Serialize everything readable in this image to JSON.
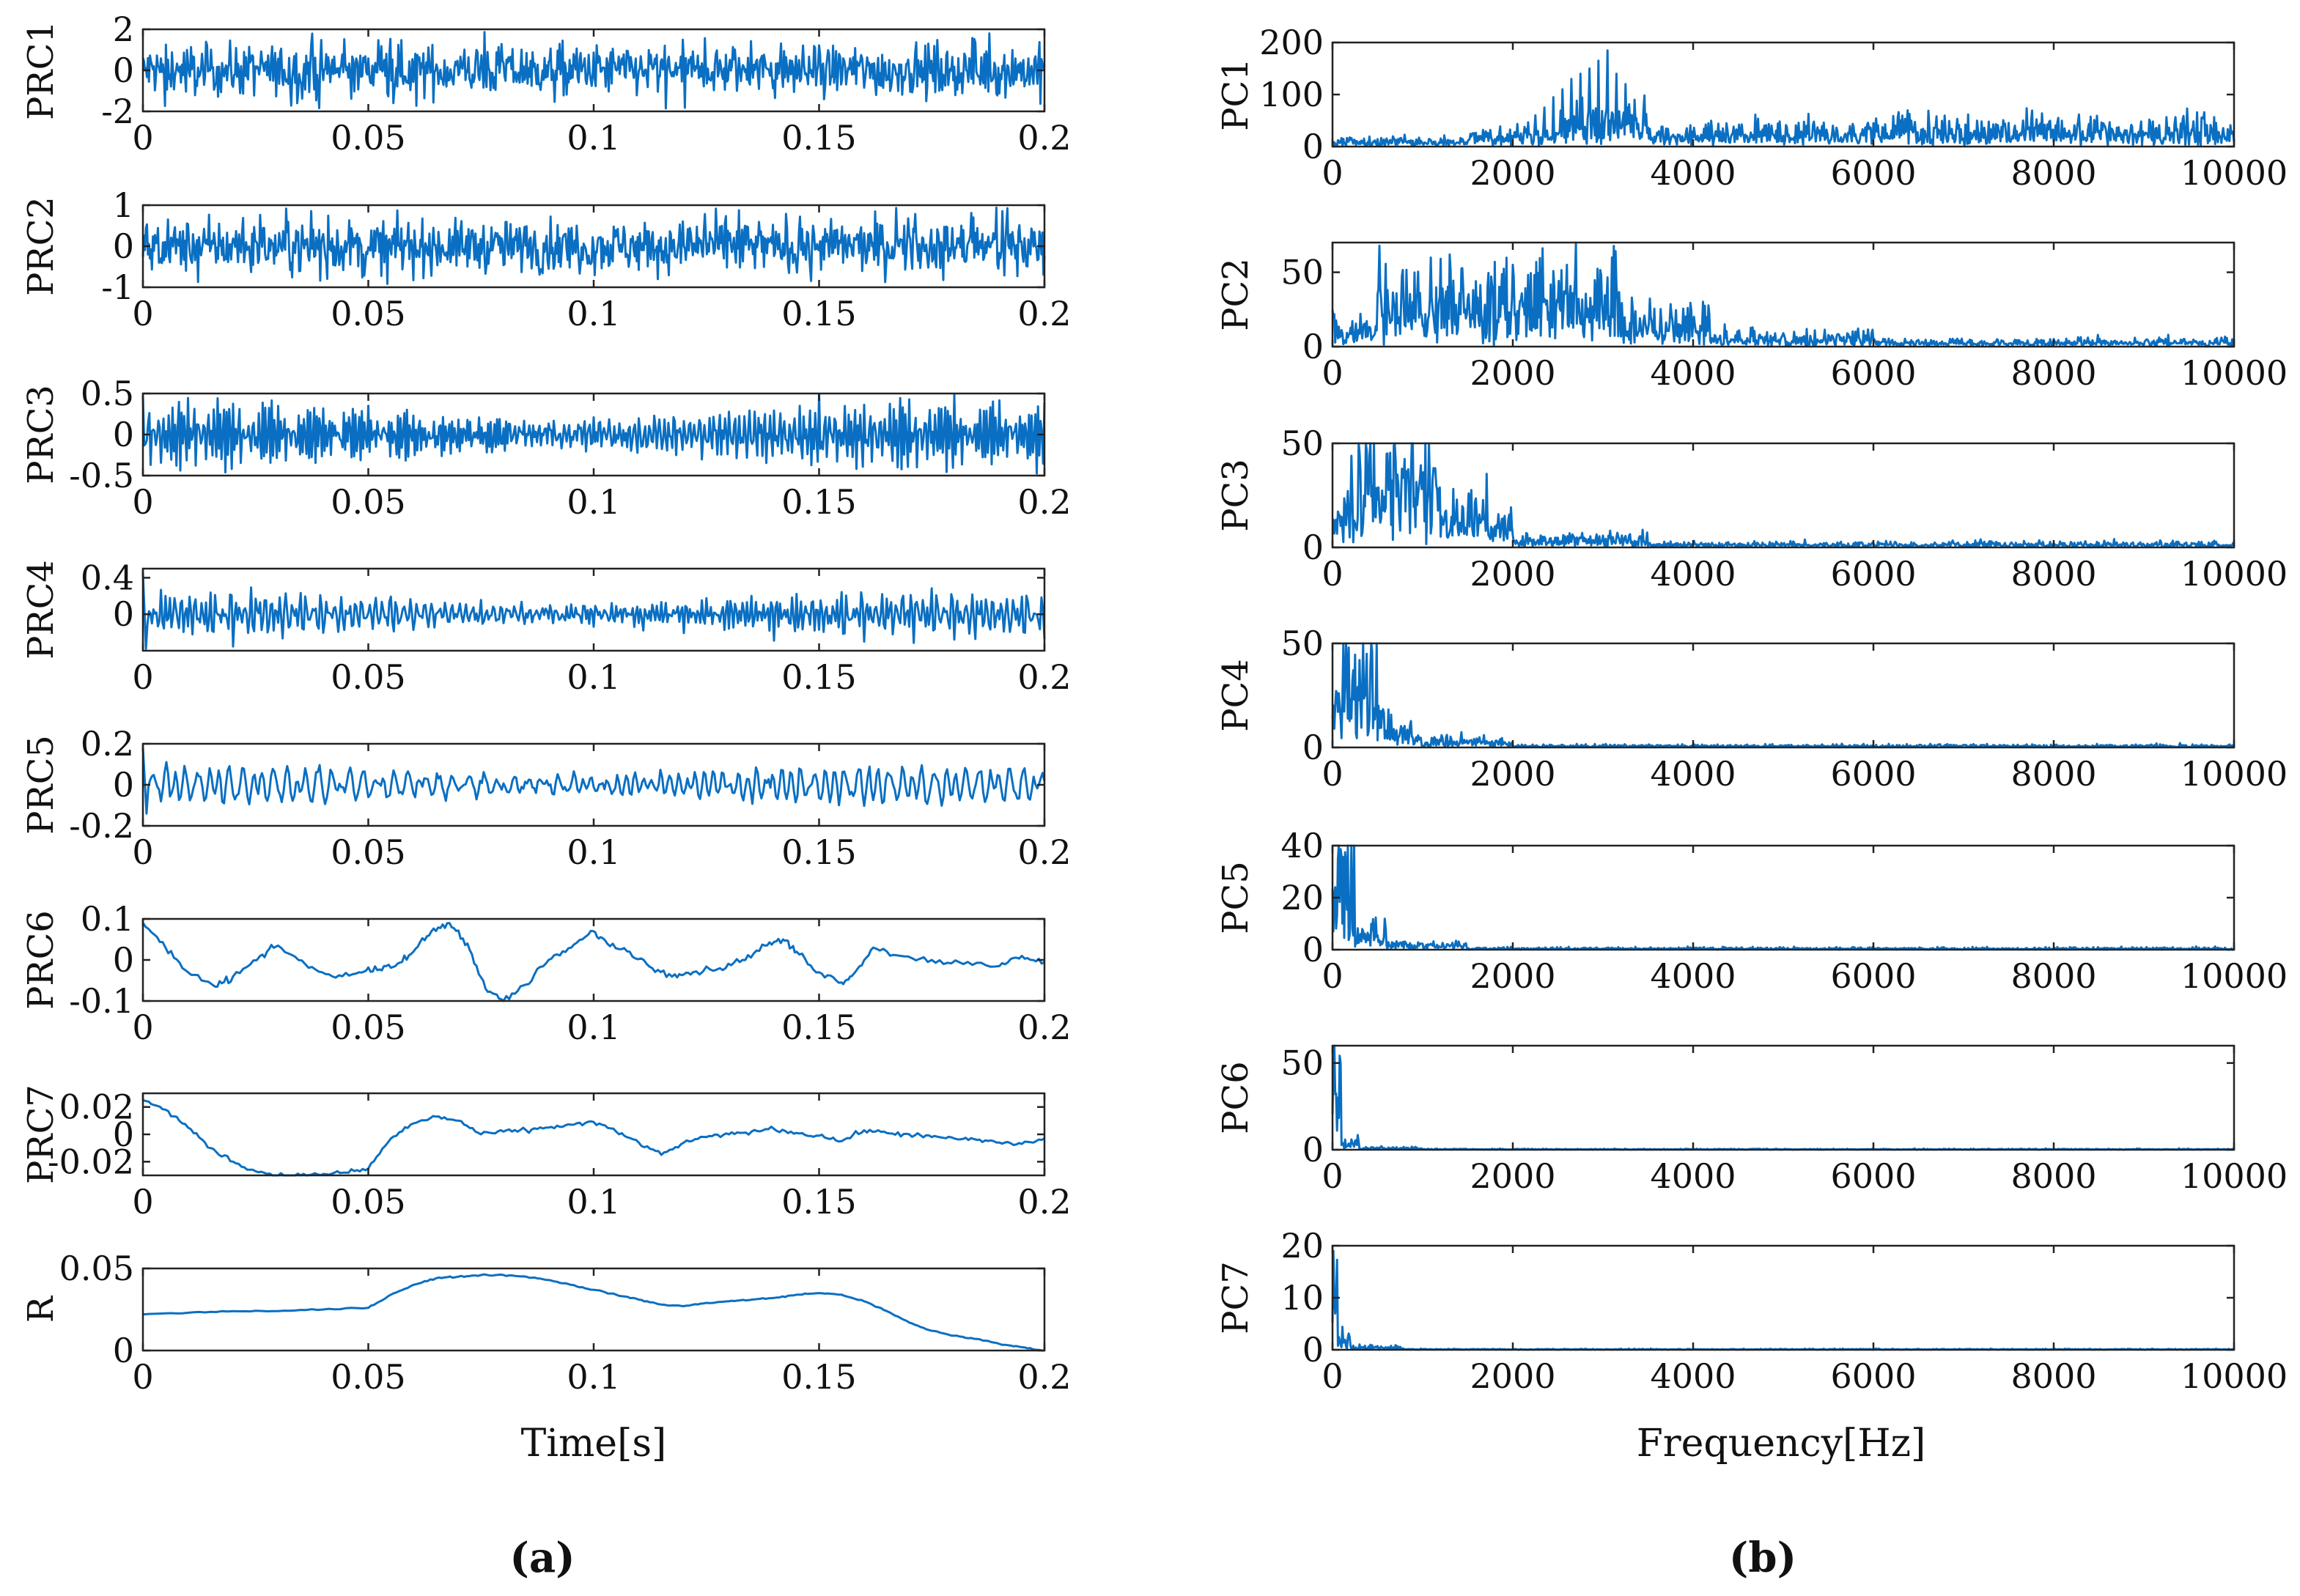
{
  "colors": {
    "line": "#0a6fc2",
    "axis": "#222222"
  },
  "panel_labels": {
    "a": "(a)",
    "b": "(b)"
  },
  "x_titles": {
    "a": "Time[s]",
    "b": "Frequency[Hz]"
  },
  "chart_data": [
    {
      "type": "line",
      "id": "a1",
      "ylabel": "PRC1",
      "xlabel": "",
      "xlim": [
        0,
        0.2
      ],
      "ylim": [
        -2,
        2
      ],
      "xticks": [
        0,
        0.05,
        0.1,
        0.15,
        0.2
      ],
      "xtick_labels": [
        "0",
        "0.05",
        "0.1",
        "0.15",
        "0.2"
      ],
      "yticks": [
        -2,
        0,
        2
      ],
      "ytick_labels": [
        "-2",
        "0",
        "2"
      ],
      "signal": {
        "kind": "noise",
        "amp": 0.6,
        "extreme": 1.9,
        "n": 900
      }
    },
    {
      "type": "line",
      "id": "a2",
      "ylabel": "PRC2",
      "xlabel": "",
      "xlim": [
        0,
        0.2
      ],
      "ylim": [
        -1,
        1
      ],
      "xticks": [
        0,
        0.05,
        0.1,
        0.15,
        0.2
      ],
      "xtick_labels": [
        "0",
        "0.05",
        "0.1",
        "0.15",
        "0.2"
      ],
      "yticks": [
        -1,
        0,
        1
      ],
      "ytick_labels": [
        "-1",
        "0",
        "1"
      ],
      "signal": {
        "kind": "noise",
        "amp": 0.3,
        "extreme": 0.95,
        "n": 900
      }
    },
    {
      "type": "line",
      "id": "a3",
      "ylabel": "PRC3",
      "xlabel": "",
      "xlim": [
        0,
        0.2
      ],
      "ylim": [
        -0.5,
        0.5
      ],
      "xticks": [
        0,
        0.05,
        0.1,
        0.15,
        0.2
      ],
      "xtick_labels": [
        "0",
        "0.05",
        "0.1",
        "0.15",
        "0.2"
      ],
      "yticks": [
        -0.5,
        0,
        0.5
      ],
      "ytick_labels": [
        "-0.5",
        "0",
        "0.5"
      ],
      "signal": {
        "kind": "osc",
        "amp": 0.2,
        "freqs": [
          1500,
          2100,
          2600
        ],
        "n": 700
      }
    },
    {
      "type": "line",
      "id": "a4",
      "ylabel": "PRC4",
      "xlabel": "",
      "xlim": [
        0,
        0.2
      ],
      "ylim": [
        -0.4,
        0.5
      ],
      "xticks": [
        0,
        0.05,
        0.1,
        0.15,
        0.2
      ],
      "xtick_labels": [
        "0",
        "0.05",
        "0.1",
        "0.15",
        "0.2"
      ],
      "yticks": [
        0,
        0.4
      ],
      "ytick_labels": [
        "0",
        "0.4"
      ],
      "signal": {
        "kind": "osc",
        "amp": 0.12,
        "freqs": [
          650,
          900,
          1100
        ],
        "start": [
          0.45,
          -0.38
        ],
        "n": 600
      }
    },
    {
      "type": "line",
      "id": "a5",
      "ylabel": "PRC5",
      "xlabel": "",
      "xlim": [
        0,
        0.2
      ],
      "ylim": [
        -0.2,
        0.2
      ],
      "xticks": [
        0,
        0.05,
        0.1,
        0.15,
        0.2
      ],
      "xtick_labels": [
        "0",
        "0.05",
        "0.1",
        "0.15",
        "0.2"
      ],
      "yticks": [
        -0.2,
        0,
        0.2
      ],
      "ytick_labels": [
        "-0.2",
        "0",
        "0.2"
      ],
      "signal": {
        "kind": "osc",
        "amp": 0.05,
        "freqs": [
          300,
          410,
          520
        ],
        "start": [
          0.18,
          -0.14
        ],
        "n": 500
      }
    },
    {
      "type": "line",
      "id": "a6",
      "ylabel": "PRC6",
      "xlabel": "",
      "xlim": [
        0,
        0.2
      ],
      "ylim": [
        -0.1,
        0.1
      ],
      "xticks": [
        0,
        0.05,
        0.1,
        0.15,
        0.2
      ],
      "xtick_labels": [
        "0",
        "0.05",
        "0.1",
        "0.15",
        "0.2"
      ],
      "yticks": [
        -0.1,
        0,
        0.1
      ],
      "ytick_labels": [
        "-0.1",
        "0",
        "0.1"
      ],
      "x": [
        0,
        0.005,
        0.01,
        0.016,
        0.02,
        0.026,
        0.03,
        0.036,
        0.042,
        0.048,
        0.052,
        0.056,
        0.06,
        0.064,
        0.068,
        0.072,
        0.076,
        0.08,
        0.085,
        0.09,
        0.095,
        0.1,
        0.103,
        0.108,
        0.113,
        0.118,
        0.122,
        0.128,
        0.133,
        0.138,
        0.142,
        0.145,
        0.15,
        0.155,
        0.158,
        0.162,
        0.168,
        0.175,
        0.182,
        0.19,
        0.195,
        0.2
      ],
      "y": [
        0.09,
        0.03,
        -0.03,
        -0.065,
        -0.04,
        0.01,
        0.035,
        -0.01,
        -0.04,
        -0.03,
        -0.025,
        -0.015,
        0.02,
        0.07,
        0.09,
        0.04,
        -0.07,
        -0.1,
        -0.06,
        0.0,
        0.03,
        0.07,
        0.04,
        0.02,
        -0.02,
        -0.035,
        -0.03,
        -0.02,
        0.0,
        0.035,
        0.05,
        0.02,
        -0.03,
        -0.055,
        -0.03,
        0.03,
        0.01,
        0.0,
        -0.01,
        -0.015,
        0.01,
        -0.005
      ],
      "signal": {
        "kind": "points",
        "jitter": 0.004
      }
    },
    {
      "type": "line",
      "id": "a7",
      "ylabel": "PRC7",
      "xlabel": "",
      "xlim": [
        0,
        0.2
      ],
      "ylim": [
        -0.03,
        0.03
      ],
      "xticks": [
        0,
        0.05,
        0.1,
        0.15,
        0.2
      ],
      "xtick_labels": [
        "0",
        "0.05",
        "0.1",
        "0.15",
        "0.2"
      ],
      "yticks": [
        -0.02,
        0,
        0.02
      ],
      "ytick_labels": [
        "-0.02",
        "0",
        "0.02"
      ],
      "x": [
        0,
        0.005,
        0.01,
        0.015,
        0.02,
        0.025,
        0.03,
        0.035,
        0.04,
        0.045,
        0.05,
        0.055,
        0.06,
        0.065,
        0.07,
        0.075,
        0.08,
        0.085,
        0.09,
        0.095,
        0.1,
        0.105,
        0.11,
        0.115,
        0.12,
        0.125,
        0.13,
        0.135,
        0.14,
        0.145,
        0.15,
        0.155,
        0.16,
        0.165,
        0.17,
        0.175,
        0.18,
        0.185,
        0.19,
        0.195,
        0.2
      ],
      "y": [
        0.025,
        0.018,
        0.005,
        -0.01,
        -0.02,
        -0.027,
        -0.03,
        -0.03,
        -0.029,
        -0.028,
        -0.025,
        -0.003,
        0.008,
        0.013,
        0.01,
        0.0,
        0.002,
        0.003,
        0.005,
        0.007,
        0.009,
        0.002,
        -0.006,
        -0.015,
        -0.006,
        -0.002,
        0.0,
        0.002,
        0.004,
        0.001,
        -0.001,
        -0.005,
        0.003,
        0.001,
        0.0,
        -0.002,
        -0.003,
        -0.004,
        -0.006,
        -0.007,
        -0.003
      ],
      "signal": {
        "kind": "points",
        "jitter": 0.0008
      }
    },
    {
      "type": "line",
      "id": "a8",
      "ylabel": "R",
      "xlabel": "Time[s]",
      "xlim": [
        0,
        0.2
      ],
      "ylim": [
        0,
        0.05
      ],
      "xticks": [
        0,
        0.05,
        0.1,
        0.15,
        0.2
      ],
      "xtick_labels": [
        "0",
        "0.05",
        "0.1",
        "0.15",
        "0.2"
      ],
      "yticks": [
        0,
        0.05
      ],
      "ytick_labels": [
        "0",
        "0.05"
      ],
      "x": [
        0,
        0.01,
        0.02,
        0.03,
        0.04,
        0.05,
        0.055,
        0.06,
        0.065,
        0.07,
        0.075,
        0.08,
        0.085,
        0.09,
        0.095,
        0.1,
        0.105,
        0.11,
        0.115,
        0.12,
        0.125,
        0.13,
        0.135,
        0.14,
        0.145,
        0.15,
        0.155,
        0.16,
        0.165,
        0.17,
        0.175,
        0.18,
        0.185,
        0.19,
        0.195,
        0.2
      ],
      "y": [
        0.022,
        0.023,
        0.024,
        0.024,
        0.025,
        0.026,
        0.034,
        0.04,
        0.044,
        0.045,
        0.046,
        0.046,
        0.045,
        0.043,
        0.04,
        0.037,
        0.034,
        0.031,
        0.028,
        0.027,
        0.029,
        0.03,
        0.031,
        0.032,
        0.034,
        0.035,
        0.034,
        0.03,
        0.024,
        0.017,
        0.012,
        0.009,
        0.007,
        0.004,
        0.002,
        0.0
      ],
      "signal": {
        "kind": "points",
        "jitter": 0.0002
      }
    },
    {
      "type": "line",
      "id": "b1",
      "ylabel": "PC1",
      "xlabel": "",
      "xlim": [
        0,
        10000
      ],
      "ylim": [
        0,
        200
      ],
      "xticks": [
        0,
        2000,
        4000,
        6000,
        8000,
        10000
      ],
      "xtick_labels": [
        "0",
        "2000",
        "4000",
        "6000",
        "8000",
        "10000"
      ],
      "yticks": [
        0,
        100,
        200
      ],
      "ytick_labels": [
        "0",
        "100",
        "200"
      ],
      "signal": {
        "kind": "spectrum",
        "n": 1000,
        "floor": 10,
        "bands": [
          [
            0,
            1500,
            10
          ],
          [
            1500,
            2500,
            20
          ],
          [
            2500,
            3500,
            45
          ],
          [
            3500,
            6000,
            28
          ],
          [
            6000,
            10000,
            30
          ]
        ],
        "peaks": [
          [
            2250,
            60
          ],
          [
            2350,
            75
          ],
          [
            2450,
            95
          ],
          [
            2550,
            110
          ],
          [
            2650,
            130
          ],
          [
            2750,
            140
          ],
          [
            2850,
            150
          ],
          [
            2950,
            165
          ],
          [
            3050,
            185
          ],
          [
            3150,
            140
          ],
          [
            3250,
            120
          ],
          [
            3350,
            90
          ],
          [
            3450,
            70
          ]
        ]
      }
    },
    {
      "type": "line",
      "id": "b2",
      "ylabel": "PC2",
      "xlabel": "",
      "xlim": [
        0,
        10000
      ],
      "ylim": [
        0,
        70
      ],
      "xticks": [
        0,
        2000,
        4000,
        6000,
        8000,
        10000
      ],
      "xtick_labels": [
        "0",
        "2000",
        "4000",
        "6000",
        "8000",
        "10000"
      ],
      "yticks": [
        0,
        50
      ],
      "ytick_labels": [
        "0",
        "50"
      ],
      "signal": {
        "kind": "spectrum",
        "n": 1000,
        "floor": 1,
        "bands": [
          [
            0,
            500,
            12
          ],
          [
            500,
            3200,
            32
          ],
          [
            3200,
            4200,
            18
          ],
          [
            4200,
            6000,
            6
          ],
          [
            6000,
            10000,
            3
          ]
        ],
        "peaks": [
          [
            1300,
            62
          ],
          [
            2000,
            55
          ],
          [
            2700,
            70
          ],
          [
            3100,
            60
          ]
        ]
      }
    },
    {
      "type": "line",
      "id": "b3",
      "ylabel": "PC3",
      "xlabel": "",
      "xlim": [
        0,
        10000
      ],
      "ylim": [
        0,
        50
      ],
      "xticks": [
        0,
        2000,
        4000,
        6000,
        8000,
        10000
      ],
      "xtick_labels": [
        "0",
        "2000",
        "4000",
        "6000",
        "8000",
        "10000"
      ],
      "yticks": [
        0,
        50
      ],
      "ytick_labels": [
        "0",
        "50"
      ],
      "signal": {
        "kind": "spectrum",
        "n": 1000,
        "floor": 0.5,
        "bands": [
          [
            0,
            200,
            15
          ],
          [
            200,
            1200,
            32
          ],
          [
            1200,
            2000,
            14
          ],
          [
            2000,
            3500,
            4
          ],
          [
            3500,
            10000,
            1.5
          ]
        ],
        "peaks": [
          [
            600,
            45
          ],
          [
            700,
            42
          ]
        ]
      }
    },
    {
      "type": "line",
      "id": "b4",
      "ylabel": "PC4",
      "xlabel": "",
      "xlim": [
        0,
        10000
      ],
      "ylim": [
        0,
        50
      ],
      "xticks": [
        0,
        2000,
        4000,
        6000,
        8000,
        10000
      ],
      "xtick_labels": [
        "0",
        "2000",
        "4000",
        "6000",
        "8000",
        "10000"
      ],
      "yticks": [
        0,
        50
      ],
      "ytick_labels": [
        "0",
        "50"
      ],
      "signal": {
        "kind": "spectrum",
        "n": 1000,
        "floor": 0.3,
        "bands": [
          [
            0,
            500,
            30
          ],
          [
            500,
            900,
            10
          ],
          [
            900,
            2000,
            3
          ],
          [
            2000,
            10000,
            0.8
          ]
        ],
        "peaks": [
          [
            180,
            48
          ],
          [
            300,
            42
          ]
        ]
      }
    },
    {
      "type": "line",
      "id": "b5",
      "ylabel": "PC5",
      "xlabel": "",
      "xlim": [
        0,
        10000
      ],
      "ylim": [
        0,
        40
      ],
      "xticks": [
        0,
        2000,
        4000,
        6000,
        8000,
        10000
      ],
      "xtick_labels": [
        "0",
        "2000",
        "4000",
        "6000",
        "8000",
        "10000"
      ],
      "yticks": [
        0,
        20,
        40
      ],
      "ytick_labels": [
        "0",
        "20",
        "40"
      ],
      "signal": {
        "kind": "spectrum",
        "n": 1000,
        "floor": 0.2,
        "bands": [
          [
            0,
            250,
            24
          ],
          [
            250,
            600,
            6
          ],
          [
            600,
            1500,
            2
          ],
          [
            1500,
            10000,
            0.5
          ]
        ],
        "peaks": [
          [
            60,
            35
          ],
          [
            150,
            32
          ]
        ]
      }
    },
    {
      "type": "line",
      "id": "b6",
      "ylabel": "PC6",
      "xlabel": "",
      "xlim": [
        0,
        10000
      ],
      "ylim": [
        0,
        60
      ],
      "xticks": [
        0,
        2000,
        4000,
        6000,
        8000,
        10000
      ],
      "xtick_labels": [
        "0",
        "2000",
        "4000",
        "6000",
        "8000",
        "10000"
      ],
      "yticks": [
        0,
        50
      ],
      "ytick_labels": [
        "0",
        "50"
      ],
      "signal": {
        "kind": "spectrum",
        "n": 1000,
        "floor": 0.1,
        "bands": [
          [
            0,
            100,
            35
          ],
          [
            100,
            300,
            4
          ],
          [
            300,
            1000,
            1
          ],
          [
            1000,
            10000,
            0.3
          ]
        ],
        "peaks": [
          [
            20,
            60
          ],
          [
            60,
            30
          ]
        ]
      }
    },
    {
      "type": "line",
      "id": "b7",
      "ylabel": "PC7",
      "xlabel": "Frequency[Hz]",
      "xlim": [
        0,
        10000
      ],
      "ylim": [
        0,
        20
      ],
      "xticks": [
        0,
        2000,
        4000,
        6000,
        8000,
        10000
      ],
      "xtick_labels": [
        "0",
        "2000",
        "4000",
        "6000",
        "8000",
        "10000"
      ],
      "yticks": [
        0,
        10,
        20
      ],
      "ytick_labels": [
        "0",
        "10",
        "20"
      ],
      "signal": {
        "kind": "spectrum",
        "n": 1000,
        "floor": 0.05,
        "bands": [
          [
            0,
            60,
            12
          ],
          [
            60,
            200,
            2
          ],
          [
            200,
            800,
            0.5
          ],
          [
            800,
            10000,
            0.1
          ]
        ],
        "peaks": [
          [
            10,
            19
          ],
          [
            40,
            10
          ]
        ]
      }
    }
  ]
}
